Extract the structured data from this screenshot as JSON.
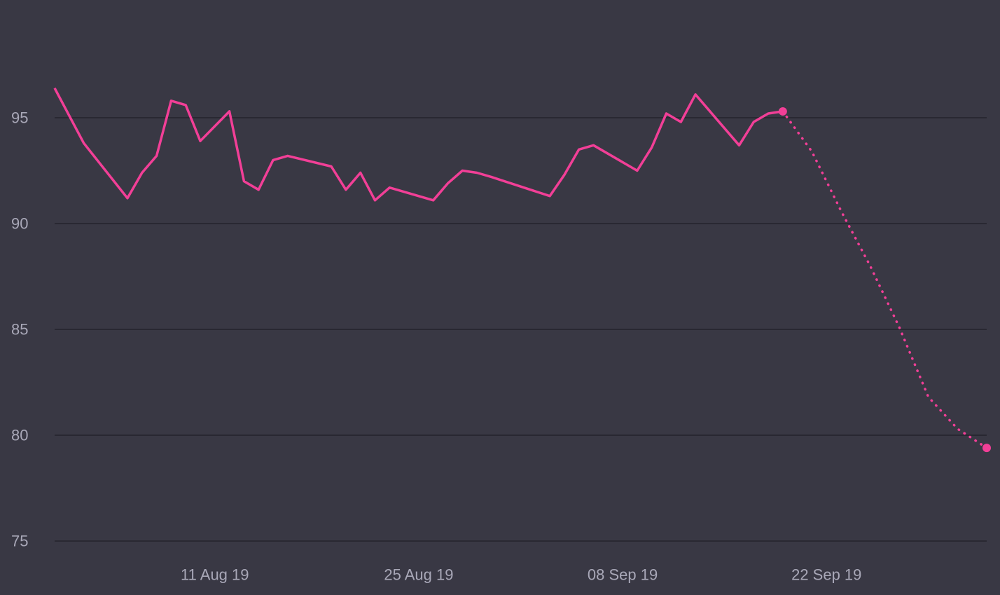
{
  "colors": {
    "background": "#393844",
    "grid": "#24232c",
    "tick_text": "#a9a8b8",
    "series": "#f23f97"
  },
  "chart_data": {
    "type": "line",
    "title": "",
    "xlabel": "",
    "ylabel": "",
    "ylim": [
      75,
      100
    ],
    "xlim": [
      "2019-07-31",
      "2019-10-03"
    ],
    "grid": "horizontal",
    "legend": "none",
    "y_ticks": [
      75,
      80,
      85,
      90,
      95
    ],
    "y_tick_labels": [
      "75",
      "80",
      "85",
      "90",
      "95"
    ],
    "x_ticks": [
      "2019-08-11",
      "2019-08-25",
      "2019-09-08",
      "2019-09-22"
    ],
    "x_tick_labels": [
      "11 Aug 19",
      "25 Aug 19",
      "08 Sep 19",
      "22 Sep 19"
    ],
    "series": [
      {
        "style": "solid",
        "x": [
          "2019-07-31",
          "2019-08-02",
          "2019-08-05",
          "2019-08-06",
          "2019-08-07",
          "2019-08-08",
          "2019-08-09",
          "2019-08-10",
          "2019-08-12",
          "2019-08-13",
          "2019-08-14",
          "2019-08-15",
          "2019-08-16",
          "2019-08-19",
          "2019-08-20",
          "2019-08-21",
          "2019-08-22",
          "2019-08-23",
          "2019-08-26",
          "2019-08-27",
          "2019-08-28",
          "2019-08-29",
          "2019-08-30",
          "2019-09-03",
          "2019-09-04",
          "2019-09-05",
          "2019-09-06",
          "2019-09-09",
          "2019-09-10",
          "2019-09-11",
          "2019-09-12",
          "2019-09-13",
          "2019-09-16",
          "2019-09-17",
          "2019-09-18",
          "2019-09-19"
        ],
        "y": [
          96.4,
          93.8,
          91.2,
          92.4,
          93.2,
          95.8,
          95.6,
          93.9,
          95.3,
          92.0,
          91.6,
          93.0,
          93.2,
          92.7,
          91.6,
          92.4,
          91.1,
          91.7,
          91.1,
          91.9,
          92.5,
          92.4,
          92.2,
          91.3,
          92.3,
          93.5,
          93.7,
          92.5,
          93.6,
          95.2,
          94.8,
          96.1,
          93.7,
          94.8,
          95.2,
          95.3
        ]
      },
      {
        "style": "dotted",
        "x": [
          "2019-09-19",
          "2019-09-21",
          "2019-09-23",
          "2019-09-25",
          "2019-09-27",
          "2019-09-29",
          "2019-10-01",
          "2019-10-03"
        ],
        "y": [
          95.3,
          93.4,
          90.6,
          88.0,
          85.1,
          81.8,
          80.3,
          79.4
        ]
      }
    ]
  }
}
